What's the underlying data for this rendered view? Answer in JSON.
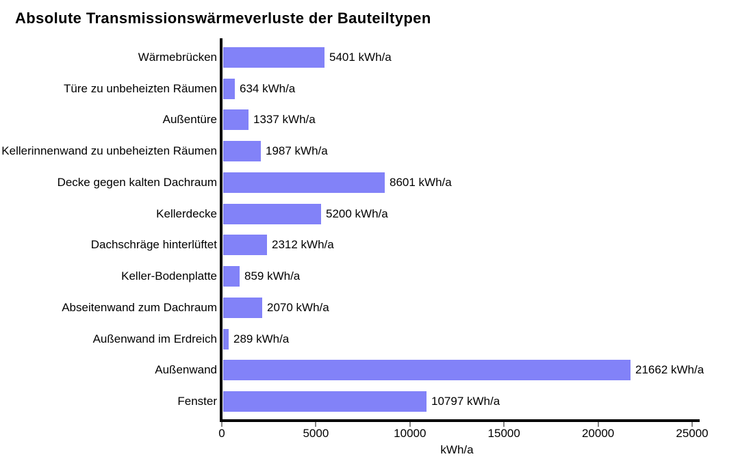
{
  "title": "Absolute Transmissionswärmeverluste der Bauteiltypen",
  "chart_data": {
    "type": "bar",
    "orientation": "horizontal",
    "title": "Absolute Transmissionswärmeverluste der Bauteiltypen",
    "categories": [
      "Wärmebrücken",
      "Türe zu unbeheizten Räumen",
      "Außentüre",
      "Kellerinnenwand zu unbeheizten Räumen",
      "Decke gegen kalten Dachraum",
      "Kellerdecke",
      "Dachschräge hinterlüftet",
      "Keller-Bodenplatte",
      "Abseitenwand zum Dachraum",
      "Außenwand im Erdreich",
      "Außenwand",
      "Fenster"
    ],
    "values": [
      5401,
      634,
      1337,
      1987,
      8601,
      5200,
      2312,
      859,
      2070,
      289,
      21662,
      10797
    ],
    "value_suffix": " kWh/a",
    "value_labels": [
      "5401 kWh/a",
      "634 kWh/a",
      "1337 kWh/a",
      "1987 kWh/a",
      "8601 kWh/a",
      "5200 kWh/a",
      "2312 kWh/a",
      "859 kWh/a",
      "2070 kWh/a",
      "289 kWh/a",
      "21662 kWh/a",
      "10797 kWh/a"
    ],
    "xlabel": "kWh/a",
    "ylabel": "",
    "xlim": [
      0,
      25000
    ],
    "xticks": [
      0,
      5000,
      10000,
      15000,
      20000,
      25000
    ],
    "xtick_labels": [
      "0",
      "5000",
      "10000",
      "15000",
      "20000",
      "25000"
    ],
    "grid": false,
    "legend": null,
    "bar_color": "#8282f8",
    "axis_color": "#000000",
    "tick_color": "#848484"
  },
  "colors": {
    "background": "#ffffff",
    "bar": "#8282f8",
    "axis": "#000000",
    "tick": "#848484",
    "text": "#000000"
  }
}
